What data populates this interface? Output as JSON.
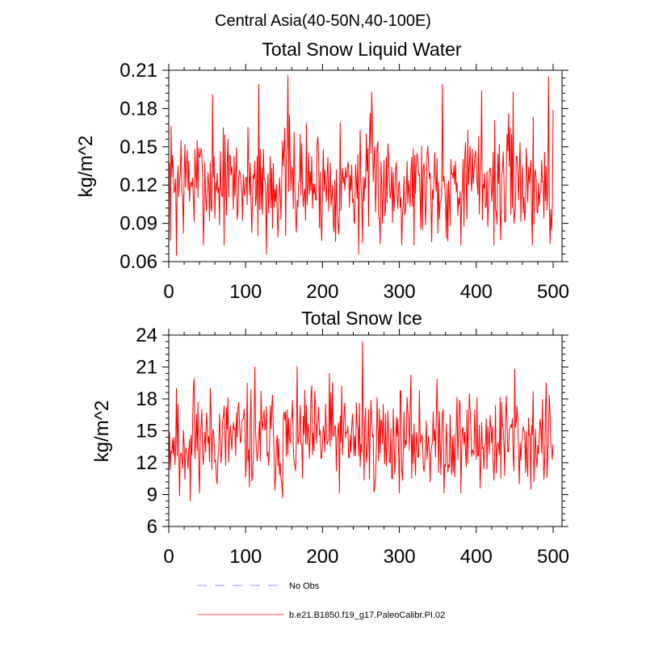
{
  "figure": {
    "suptitle": "Central Asia(40-50N,40-100E)"
  },
  "chart_data": [
    {
      "type": "line",
      "title": "Total Snow Liquid Water",
      "xlabel": "",
      "ylabel": "kg/m^2",
      "xlim": [
        0,
        500
      ],
      "ylim": [
        0.06,
        0.21
      ],
      "xticks": [
        0,
        100,
        200,
        300,
        400,
        500
      ],
      "xtick_labels": [
        "0",
        "100",
        "200",
        "300",
        "400",
        "500"
      ],
      "yticks": [
        0.06,
        0.09,
        0.12,
        0.15,
        0.18,
        0.21
      ],
      "ytick_labels": [
        "0.06",
        "0.09",
        "0.12",
        "0.15",
        "0.18",
        "0.21"
      ],
      "series": [
        {
          "name": "b.e21.B1850.f19_g17.PaleoCalibr.PI.02",
          "color": "#ff0000",
          "n_points": 500,
          "mean": 0.122,
          "range": [
            0.066,
            0.206
          ],
          "anchor_points": [
            [
              10,
              0.065
            ],
            [
              16,
              0.155
            ],
            [
              57,
              0.191
            ],
            [
              117,
              0.199
            ],
            [
              127,
              0.066
            ],
            [
              155,
              0.206
            ],
            [
              247,
              0.066
            ],
            [
              264,
              0.193
            ],
            [
              356,
              0.199
            ],
            [
              407,
              0.194
            ],
            [
              432,
              0.077
            ],
            [
              448,
              0.193
            ],
            [
              494,
              0.205
            ],
            [
              496,
              0.074
            ],
            [
              500,
              0.179
            ]
          ],
          "seed": 7
        }
      ]
    },
    {
      "type": "line",
      "title": "Total Snow Ice",
      "xlabel": "",
      "ylabel": "kg/m^2",
      "xlim": [
        0,
        500
      ],
      "ylim": [
        6,
        24
      ],
      "xticks": [
        0,
        100,
        200,
        300,
        400,
        500
      ],
      "xtick_labels": [
        "0",
        "100",
        "200",
        "300",
        "400",
        "500"
      ],
      "yticks": [
        6,
        9,
        12,
        15,
        18,
        21,
        24
      ],
      "ytick_labels": [
        "6",
        "9",
        "12",
        "15",
        "18",
        "21",
        "24"
      ],
      "series": [
        {
          "name": "b.e21.B1850.f19_g17.PaleoCalibr.PI.02",
          "color": "#ff0000",
          "n_points": 500,
          "mean": 14.2,
          "range": [
            8.4,
            23.4
          ],
          "anchor_points": [
            [
              12,
              17.5
            ],
            [
              14,
              8.9
            ],
            [
              28,
              8.4
            ],
            [
              33,
              19.9
            ],
            [
              112,
              21.0
            ],
            [
              148,
              8.7
            ],
            [
              209,
              20.4
            ],
            [
              252,
              23.4
            ],
            [
              405,
              9.6
            ],
            [
              450,
              20.8
            ],
            [
              497,
              13.8
            ]
          ],
          "seed": 11
        }
      ]
    }
  ],
  "legend": {
    "placement": "bottom",
    "entries": [
      {
        "label": "No Obs",
        "color": "#aaaaee",
        "style": "dashed"
      },
      {
        "label": "b.e21.B1850.f19_g17.PaleoCalibr.PI.02",
        "color": "#ff7777",
        "style": "solid"
      }
    ]
  }
}
